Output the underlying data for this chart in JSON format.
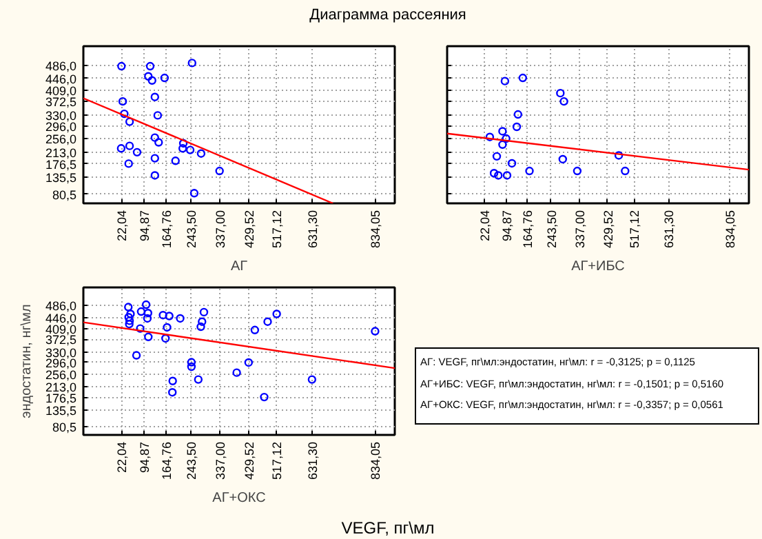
{
  "chart_data": [
    {
      "type": "scatter",
      "title": "Диаграмма рассеяния",
      "xlabel": "АГ",
      "grid": true,
      "xlim": [
        -100,
        897
      ],
      "ylim": [
        52,
        547
      ],
      "xticks": [
        {
          "value": 22.04,
          "label": "22,04"
        },
        {
          "value": 94.87,
          "label": "94,87"
        },
        {
          "value": 164.76,
          "label": "164,76"
        },
        {
          "value": 243.5,
          "label": "243,50"
        },
        {
          "value": 337.0,
          "label": "337,00"
        },
        {
          "value": 429.52,
          "label": "429,52"
        },
        {
          "value": 517.12,
          "label": "517,12"
        },
        {
          "value": 631.3,
          "label": "631,30"
        },
        {
          "value": 834.05,
          "label": "834,05"
        }
      ],
      "yticks": [
        {
          "value": 80.5,
          "label": "80,5"
        },
        {
          "value": 135.5,
          "label": "135,5"
        },
        {
          "value": 176.5,
          "label": "176,5"
        },
        {
          "value": 213.0,
          "label": "213,0"
        },
        {
          "value": 256.0,
          "label": "256,0"
        },
        {
          "value": 296.0,
          "label": "296,0"
        },
        {
          "value": 330.0,
          "label": "330,0"
        },
        {
          "value": 372.5,
          "label": "372,5"
        },
        {
          "value": 409.0,
          "label": "409,0"
        },
        {
          "value": 446.0,
          "label": "446,0"
        },
        {
          "value": 486.0,
          "label": "486,0"
        }
      ],
      "series": [
        {
          "marker": "circle",
          "color": "#0000ff",
          "x": [
            22,
            114,
            248,
            108,
            120,
            160,
            26,
            129,
            31,
            138,
            48,
            129,
            141,
            220,
            218,
            242,
            21,
            48,
            72,
            277,
            129,
            195,
            45,
            129,
            336,
            255
          ],
          "values": [
            484,
            484,
            494,
            452,
            439,
            447,
            373,
            387,
            334,
            329,
            309,
            259,
            244,
            241,
            225,
            220,
            225,
            233,
            213,
            209,
            194,
            186,
            177,
            140,
            154,
            84
          ]
        },
        {
          "type": "line",
          "color": "#ff0000",
          "x": [
            -100,
            699
          ],
          "values": [
            383,
            52
          ]
        }
      ]
    },
    {
      "type": "scatter",
      "xlabel": "АГ+ИБС",
      "grid": true,
      "tick_labels": "x",
      "xlim": [
        -100,
        897
      ],
      "ylim": [
        52,
        547
      ],
      "yticks": [
        {
          "value": 80.5,
          "label": null
        },
        {
          "value": 135.5,
          "label": null
        },
        {
          "value": 176.5,
          "label": null
        },
        {
          "value": 213.0,
          "label": null
        },
        {
          "value": 256.0,
          "label": null
        },
        {
          "value": 296.0,
          "label": null
        },
        {
          "value": 330.0,
          "label": null
        },
        {
          "value": 372.5,
          "label": null
        },
        {
          "value": 409.0,
          "label": null
        },
        {
          "value": 446.0,
          "label": null
        },
        {
          "value": 486.0,
          "label": null
        }
      ],
      "xticks": [
        {
          "value": 22.04,
          "label": "22,04"
        },
        {
          "value": 94.87,
          "label": "94,87"
        },
        {
          "value": 164.76,
          "label": "164,76"
        },
        {
          "value": 243.5,
          "label": "243,50"
        },
        {
          "value": 337.0,
          "label": "337,00"
        },
        {
          "value": 429.52,
          "label": "429,52"
        },
        {
          "value": 517.12,
          "label": "517,12"
        },
        {
          "value": 631.3,
          "label": "631,30"
        },
        {
          "value": 834.05,
          "label": "834,05"
        }
      ],
      "series": [
        {
          "marker": "circle",
          "color": "#0000ff",
          "x": [
            91,
            150,
            274,
            286,
            134,
            130,
            41,
            83,
            95,
            83,
            64,
            114,
            55,
            69,
            98,
            172,
            282,
            330,
            467,
            488
          ],
          "values": [
            437,
            447,
            399,
            373,
            332,
            293,
            261,
            279,
            256,
            237,
            200,
            178,
            147,
            140,
            140,
            154,
            191,
            154,
            203,
            154
          ]
        },
        {
          "type": "line",
          "color": "#ff0000",
          "x": [
            -100,
            897
          ],
          "values": [
            272,
            158
          ]
        }
      ]
    },
    {
      "type": "scatter",
      "xlabel": "АГ+ОКС",
      "ylabel": "эндостатин, нг\\мл",
      "grid": true,
      "xlim": [
        -100,
        897
      ],
      "ylim": [
        52,
        547
      ],
      "annotations": [
        "VEGF, пг\\мл",
        "АГ: VEGF, пг\\мл:эндостатин, нг\\мл:   r = -0,3125; p = 0,1125",
        "АГ+ИБС:  VEGF, пг\\мл:эндостатин, нг\\мл:   r = -0,1501; p = 0,5160",
        "АГ+ОКС:  VEGF, пг\\мл:эндостатин, нг\\мл:   r = -0,3357; p = 0,0561"
      ],
      "xticks": [
        {
          "value": 22.04,
          "label": "22,04"
        },
        {
          "value": 94.87,
          "label": "94,87"
        },
        {
          "value": 164.76,
          "label": "164,76"
        },
        {
          "value": 243.5,
          "label": "243,50"
        },
        {
          "value": 337.0,
          "label": "337,00"
        },
        {
          "value": 429.52,
          "label": "429,52"
        },
        {
          "value": 517.12,
          "label": "517,12"
        },
        {
          "value": 631.3,
          "label": "631,30"
        },
        {
          "value": 834.05,
          "label": "834,05"
        }
      ],
      "yticks": [
        {
          "value": 80.5,
          "label": "80,5"
        },
        {
          "value": 135.5,
          "label": "135,5"
        },
        {
          "value": 176.5,
          "label": "176,5"
        },
        {
          "value": 213.0,
          "label": "213,0"
        },
        {
          "value": 256.0,
          "label": "256,0"
        },
        {
          "value": 296.0,
          "label": "296,0"
        },
        {
          "value": 330.0,
          "label": "330,0"
        },
        {
          "value": 372.5,
          "label": "372,5"
        },
        {
          "value": 409.0,
          "label": "409,0"
        },
        {
          "value": 446.0,
          "label": "446,0"
        },
        {
          "value": 486.0,
          "label": "486,0"
        }
      ],
      "series": [
        {
          "marker": "circle",
          "color": "#0000ff",
          "x": [
            44,
            51,
            45,
            48,
            47,
            101,
            85,
            107,
            105,
            82,
            108,
            155,
            175,
            210,
            168,
            163,
            286,
            280,
            276,
            70,
            246,
            246,
            268,
            186,
            185,
            391,
            429,
            449,
            490,
            519,
            479,
            632,
            834
          ],
          "values": [
            481,
            458,
            447,
            435,
            424,
            489,
            466,
            461,
            443,
            409,
            381,
            454,
            451,
            443,
            413,
            376,
            464,
            432,
            415,
            319,
            296,
            281,
            238,
            233,
            195,
            261,
            295,
            404,
            432,
            458,
            179,
            238,
            400
          ]
        },
        {
          "type": "line",
          "color": "#ff0000",
          "x": [
            -100,
            897
          ],
          "values": [
            430,
            276
          ]
        }
      ]
    }
  ]
}
